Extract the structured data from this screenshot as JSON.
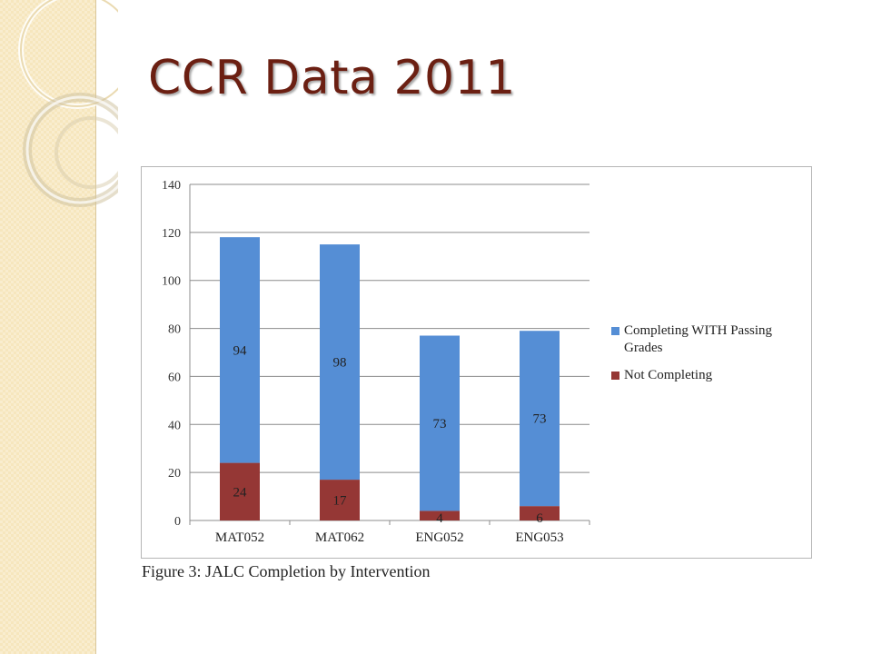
{
  "slide": {
    "title": "CCR Data 2011",
    "caption": "Figure 3: JALC Completion by Intervention"
  },
  "colors": {
    "title": "#6b1f12",
    "completing": "#558ed5",
    "not_completing": "#953735"
  },
  "chart_data": {
    "type": "bar",
    "stacked": true,
    "categories": [
      "MAT052",
      "MAT062",
      "ENG052",
      "ENG053"
    ],
    "series": [
      {
        "name": "Not Completing",
        "values": [
          24,
          17,
          4,
          6
        ],
        "color": "#953735"
      },
      {
        "name": "Completing WITH Passing Grades",
        "values": [
          94,
          98,
          73,
          73
        ],
        "color": "#558ed5"
      }
    ],
    "ylim": [
      0,
      140
    ],
    "yticks": [
      0,
      20,
      40,
      60,
      80,
      100,
      120,
      140
    ],
    "grid": true,
    "legend": "right"
  }
}
